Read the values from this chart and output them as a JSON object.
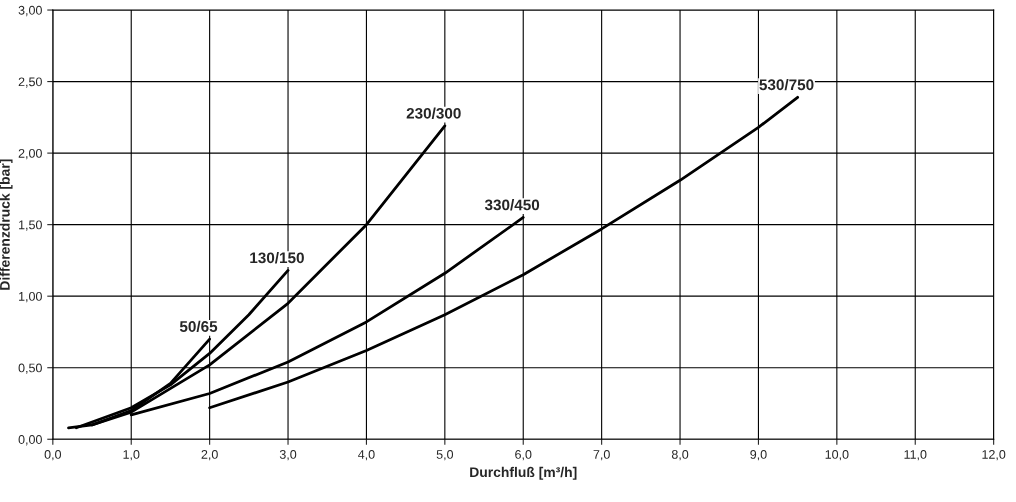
{
  "chart_data": {
    "type": "line",
    "xlabel": "Durchfluß [m³/h]",
    "ylabel": "Differenzdruck [bar]",
    "xlim": [
      0,
      12
    ],
    "ylim": [
      0,
      3
    ],
    "xticks": [
      {
        "value": 0,
        "label": "0,0"
      },
      {
        "value": 1,
        "label": "1,0"
      },
      {
        "value": 2,
        "label": "2,0"
      },
      {
        "value": 3,
        "label": "3,0"
      },
      {
        "value": 4,
        "label": "4,0"
      },
      {
        "value": 5,
        "label": "5,0"
      },
      {
        "value": 6,
        "label": "6,0"
      },
      {
        "value": 7,
        "label": "7,0"
      },
      {
        "value": 8,
        "label": "8,0"
      },
      {
        "value": 9,
        "label": "9,0"
      },
      {
        "value": 10,
        "label": "10,0"
      },
      {
        "value": 11,
        "label": "11,0"
      },
      {
        "value": 12,
        "label": "12,0"
      }
    ],
    "yticks": [
      {
        "value": 0,
        "label": "0,00"
      },
      {
        "value": 0.5,
        "label": "0,50"
      },
      {
        "value": 1,
        "label": "1,00"
      },
      {
        "value": 1.5,
        "label": "1,50"
      },
      {
        "value": 2,
        "label": "2,00"
      },
      {
        "value": 2.5,
        "label": "2,50"
      },
      {
        "value": 3,
        "label": "3,00"
      }
    ],
    "grid": true,
    "legend": false,
    "marker": "none",
    "line_style": "solid",
    "series": [
      {
        "name": "50/65",
        "color": "#000000",
        "x": [
          0.2,
          0.5,
          1.0,
          1.5,
          2.0
        ],
        "values": [
          0.08,
          0.1,
          0.2,
          0.39,
          0.7
        ]
      },
      {
        "name": "130/150",
        "color": "#000000",
        "x": [
          0.3,
          1.0,
          1.5,
          2.0,
          2.5,
          3.0
        ],
        "values": [
          0.08,
          0.22,
          0.38,
          0.6,
          0.87,
          1.18
        ]
      },
      {
        "name": "230/300",
        "color": "#000000",
        "x": [
          0.5,
          1.0,
          2.0,
          3.0,
          4.0,
          5.0
        ],
        "values": [
          0.1,
          0.19,
          0.52,
          0.95,
          1.5,
          2.19
        ]
      },
      {
        "name": "330/450",
        "color": "#000000",
        "x": [
          1.0,
          2.0,
          3.0,
          4.0,
          5.0,
          6.0
        ],
        "values": [
          0.17,
          0.32,
          0.54,
          0.82,
          1.16,
          1.55
        ]
      },
      {
        "name": "530/750",
        "color": "#000000",
        "x": [
          2.0,
          3.0,
          4.0,
          5.0,
          6.0,
          7.0,
          8.0,
          9.0,
          9.5
        ],
        "values": [
          0.22,
          0.4,
          0.62,
          0.87,
          1.15,
          1.47,
          1.81,
          2.18,
          2.39
        ]
      }
    ]
  }
}
